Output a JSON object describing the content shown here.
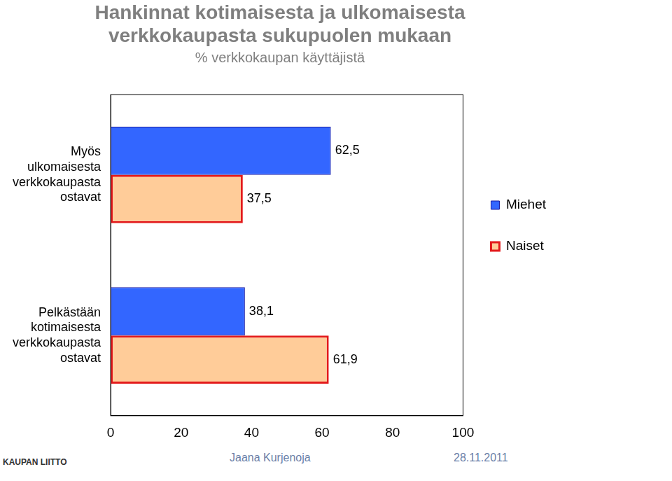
{
  "chart_data": {
    "type": "bar",
    "orientation": "horizontal",
    "title": [
      "Hankinnat kotimaisesta ja ulkomaisesta",
      "verkkokaupasta sukupuolen mukaan"
    ],
    "subtitle": "% verkkokaupan käyttäjistä",
    "categories": [
      [
        "Myös",
        "ulkomaisesta",
        "verkkokaupasta",
        "ostavat"
      ],
      [
        "Pelkästään",
        "kotimaisesta",
        "verkkokaupasta",
        "ostavat"
      ]
    ],
    "series": [
      {
        "name": "Miehet",
        "color": "#3366ff",
        "values": [
          62.5,
          38.1
        ],
        "value_labels": [
          "62,5",
          "38,1"
        ]
      },
      {
        "name": "Naiset",
        "color": "#ffcc99",
        "values": [
          37.5,
          61.9
        ],
        "value_labels": [
          "37,5",
          "61,9"
        ]
      }
    ],
    "xlim": [
      0,
      100
    ],
    "xticks": [
      0,
      20,
      40,
      60,
      80,
      100
    ],
    "grid": false,
    "legend": "right",
    "data_labels": true
  },
  "footer": {
    "logo": "KAUPAN LIITTO",
    "author": "Jaana Kurjenoja",
    "date": "28.11.2011"
  }
}
